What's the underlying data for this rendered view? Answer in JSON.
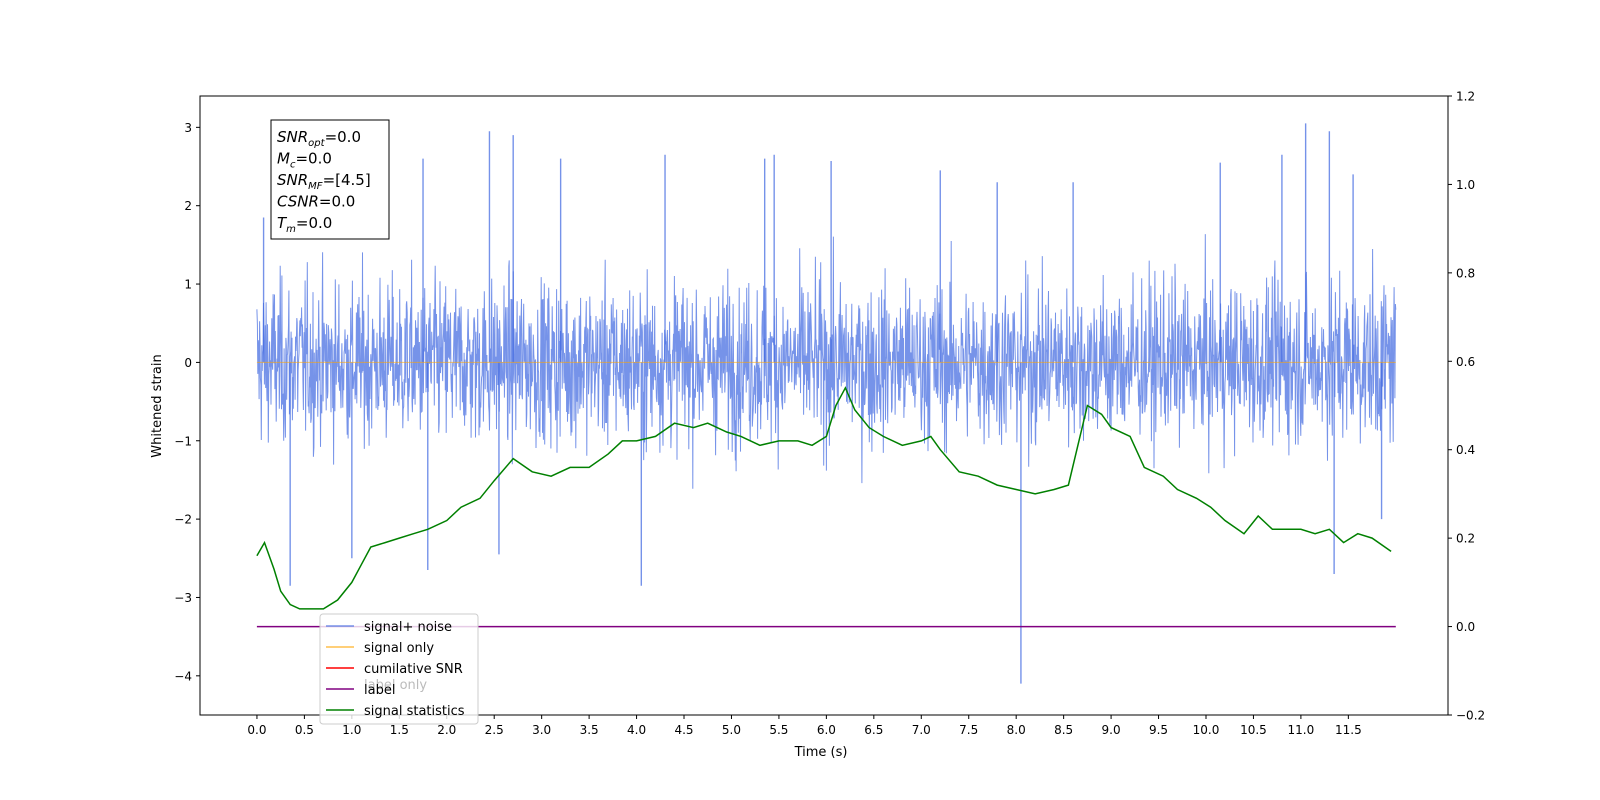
{
  "chart_data": {
    "type": "line",
    "title": "",
    "xlabel": "Time (s)",
    "ylabel": "Whitened strain",
    "xlim": [
      -0.6,
      12.55
    ],
    "ylim": [
      -4.5,
      3.4
    ],
    "y2lim": [
      -0.2,
      1.2
    ],
    "grid": false,
    "x_ticks": [
      "0.0",
      "0.5",
      "1.0",
      "1.5",
      "2.0",
      "2.5",
      "3.0",
      "3.5",
      "4.0",
      "4.5",
      "5.0",
      "5.5",
      "6.0",
      "6.5",
      "7.0",
      "7.5",
      "8.0",
      "8.5",
      "9.0",
      "9.5",
      "10.0",
      "10.5",
      "11.0",
      "11.5"
    ],
    "y_ticks": [
      "3",
      "2",
      "1",
      "0",
      "−1",
      "−2",
      "−3",
      "−4"
    ],
    "y2_ticks": [
      "1.2",
      "1.0",
      "0.8",
      "0.6",
      "0.4",
      "0.2",
      "0.0",
      "−0.2"
    ],
    "annotation": [
      {
        "base": "SNR",
        "sub": "opt",
        "value": "=0.0"
      },
      {
        "base": "M",
        "sub": "c",
        "value": "=0.0"
      },
      {
        "base": "SNR",
        "sub": "MF",
        "value": "=[4.5]"
      },
      {
        "base": "CSNR",
        "sub": "",
        "value": "=0.0"
      },
      {
        "base": "T",
        "sub": "m",
        "value": "=0.0"
      }
    ],
    "legend": {
      "location": "lower-left",
      "entries": [
        {
          "label": "signal+ noise",
          "color": "#4169e1"
        },
        {
          "label": "signal only",
          "color": "#ffa500"
        },
        {
          "label": "cumilative SNR",
          "color": "#ff0000"
        },
        {
          "label": "label",
          "color": "#800080"
        },
        {
          "label": "signal statistics",
          "color": "#008000"
        }
      ],
      "overlapped_text": [
        "label only"
      ]
    },
    "series": [
      {
        "name": "signal+ noise",
        "axis": "left",
        "color": "#4169e1",
        "style": "noise",
        "x_range": [
          0.0,
          12.0
        ],
        "envelope_typical": [
          -1.5,
          1.5
        ],
        "peaks": [
          [
            0.07,
            1.85
          ],
          [
            0.35,
            -2.85
          ],
          [
            1.0,
            -2.5
          ],
          [
            1.75,
            2.6
          ],
          [
            1.8,
            -2.65
          ],
          [
            2.45,
            2.95
          ],
          [
            2.55,
            -2.45
          ],
          [
            2.7,
            2.9
          ],
          [
            3.2,
            2.6
          ],
          [
            4.05,
            -2.85
          ],
          [
            4.3,
            2.65
          ],
          [
            5.35,
            2.6
          ],
          [
            5.45,
            2.65
          ],
          [
            6.05,
            2.57
          ],
          [
            7.2,
            2.45
          ],
          [
            7.8,
            2.3
          ],
          [
            8.05,
            -4.1
          ],
          [
            8.6,
            2.3
          ],
          [
            10.15,
            2.55
          ],
          [
            10.8,
            2.65
          ],
          [
            11.05,
            3.05
          ],
          [
            11.3,
            2.95
          ],
          [
            11.35,
            -2.7
          ],
          [
            11.55,
            2.4
          ],
          [
            11.85,
            -2.0
          ]
        ]
      },
      {
        "name": "signal only",
        "axis": "left",
        "color": "#ffa500",
        "x": [
          0.0,
          12.0
        ],
        "y": [
          0.0,
          0.0
        ]
      },
      {
        "name": "label",
        "axis": "right",
        "color": "#800080",
        "x": [
          0.0,
          12.0
        ],
        "y": [
          0.0,
          0.0
        ]
      },
      {
        "name": "signal statistics",
        "axis": "right",
        "color": "#008000",
        "x": [
          0.0,
          0.08,
          0.18,
          0.25,
          0.35,
          0.45,
          0.6,
          0.7,
          0.85,
          1.0,
          1.1,
          1.2,
          1.35,
          1.5,
          1.65,
          1.8,
          2.0,
          2.15,
          2.35,
          2.5,
          2.7,
          2.9,
          3.1,
          3.3,
          3.5,
          3.7,
          3.85,
          4.0,
          4.2,
          4.4,
          4.6,
          4.75,
          4.95,
          5.1,
          5.3,
          5.5,
          5.7,
          5.85,
          6.0,
          6.1,
          6.2,
          6.3,
          6.45,
          6.6,
          6.8,
          7.0,
          7.1,
          7.2,
          7.4,
          7.6,
          7.8,
          8.0,
          8.2,
          8.4,
          8.55,
          8.75,
          8.9,
          9.0,
          9.2,
          9.35,
          9.55,
          9.7,
          9.9,
          10.05,
          10.2,
          10.4,
          10.55,
          10.7,
          10.85,
          11.0,
          11.15,
          11.3,
          11.45,
          11.6,
          11.75,
          11.95
        ],
        "y": [
          0.16,
          0.19,
          0.13,
          0.08,
          0.05,
          0.04,
          0.04,
          0.04,
          0.06,
          0.1,
          0.14,
          0.18,
          0.19,
          0.2,
          0.21,
          0.22,
          0.24,
          0.27,
          0.29,
          0.33,
          0.38,
          0.35,
          0.34,
          0.36,
          0.36,
          0.39,
          0.42,
          0.42,
          0.43,
          0.46,
          0.45,
          0.46,
          0.44,
          0.43,
          0.41,
          0.42,
          0.42,
          0.41,
          0.43,
          0.5,
          0.54,
          0.49,
          0.45,
          0.43,
          0.41,
          0.42,
          0.43,
          0.4,
          0.35,
          0.34,
          0.32,
          0.31,
          0.3,
          0.31,
          0.32,
          0.5,
          0.48,
          0.45,
          0.43,
          0.36,
          0.34,
          0.31,
          0.29,
          0.27,
          0.24,
          0.21,
          0.25,
          0.22,
          0.22,
          0.22,
          0.21,
          0.22,
          0.19,
          0.21,
          0.2,
          0.17
        ]
      }
    ]
  }
}
